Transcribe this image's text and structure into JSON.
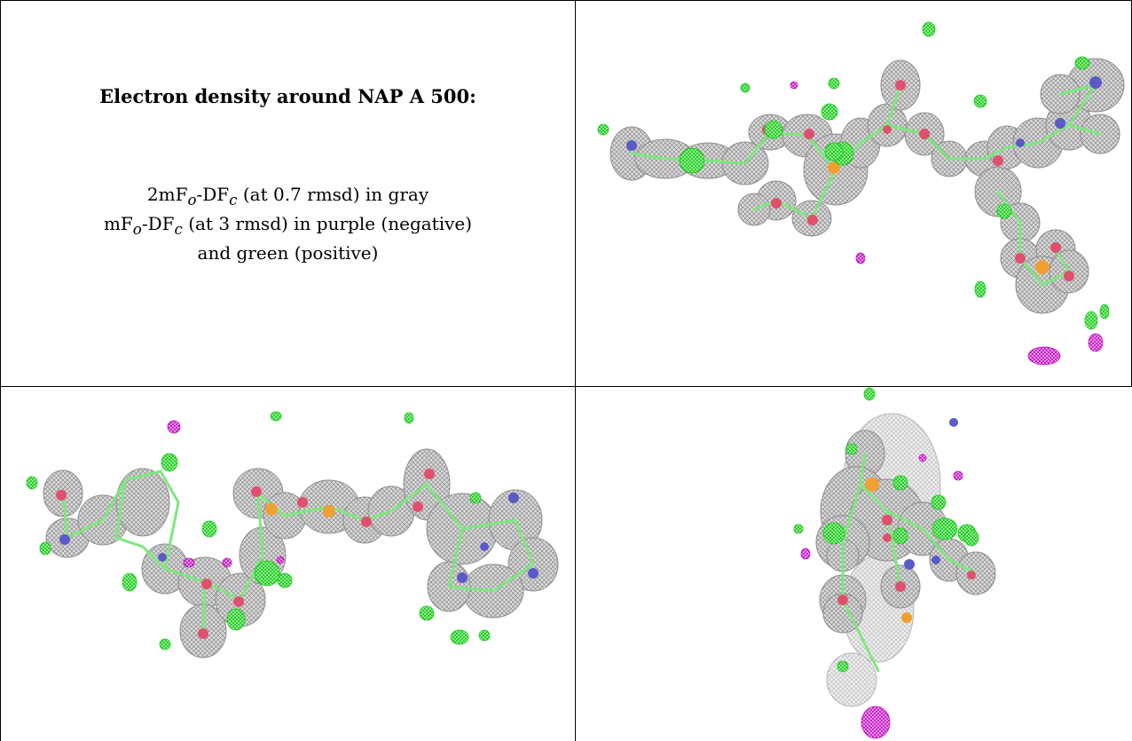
{
  "caption": {
    "title": "Electron density around NAP A 500:",
    "line1_prefix": "2mF",
    "line1_sub_o": "o",
    "line1_mid": "-DF",
    "line1_sub_c": "c",
    "line1_suffix": " (at 0.7 rmsd) in gray",
    "line2_prefix": "mF",
    "line2_sub_o": "o",
    "line2_mid": "-DF",
    "line2_sub_c": "c",
    "line2_suffix": " (at 3 rmsd) in purple (negative)",
    "line3": "and green (positive)"
  },
  "colors": {
    "density_2fofc": "#9a9a9a",
    "density_positive": "#22e022",
    "density_negative": "#d020d0",
    "carbon_bond": "#7de87d",
    "oxygen": "#e0506e",
    "nitrogen": "#5a5ac8",
    "phosphorus": "#f0a030",
    "grid": "#000000"
  },
  "panels": [
    {
      "name": "view-top-right"
    },
    {
      "name": "view-bottom-left"
    },
    {
      "name": "view-bottom-right"
    }
  ]
}
